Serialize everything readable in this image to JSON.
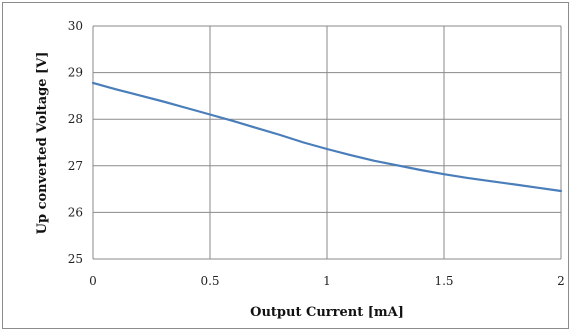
{
  "chart_data": {
    "type": "line",
    "title": "",
    "xlabel": "Output Current [mA]",
    "ylabel": "Up converted Voltage [V]",
    "xlim": [
      0,
      2
    ],
    "ylim": [
      25,
      30
    ],
    "x_ticks": [
      0,
      0.5,
      1,
      1.5,
      2
    ],
    "x_tick_labels": [
      "0",
      "0.5",
      "1",
      "1.5",
      "2"
    ],
    "y_ticks": [
      25,
      26,
      27,
      28,
      29,
      30
    ],
    "y_tick_labels": [
      "25",
      "26",
      "27",
      "28",
      "29",
      "30"
    ],
    "grid": true,
    "legend": "none",
    "series": [
      {
        "color": "#4a7ebb",
        "x": [
          0,
          0.1,
          0.2,
          0.3,
          0.4,
          0.5,
          0.6,
          0.7,
          0.8,
          0.9,
          1.0,
          1.1,
          1.2,
          1.3,
          1.4,
          1.5,
          1.6,
          1.7,
          1.8,
          1.9,
          2.0
        ],
        "y": [
          28.78,
          28.64,
          28.51,
          28.38,
          28.24,
          28.1,
          27.96,
          27.81,
          27.66,
          27.5,
          27.36,
          27.23,
          27.11,
          27.01,
          26.91,
          26.82,
          26.74,
          26.67,
          26.6,
          26.53,
          26.46
        ]
      }
    ]
  }
}
